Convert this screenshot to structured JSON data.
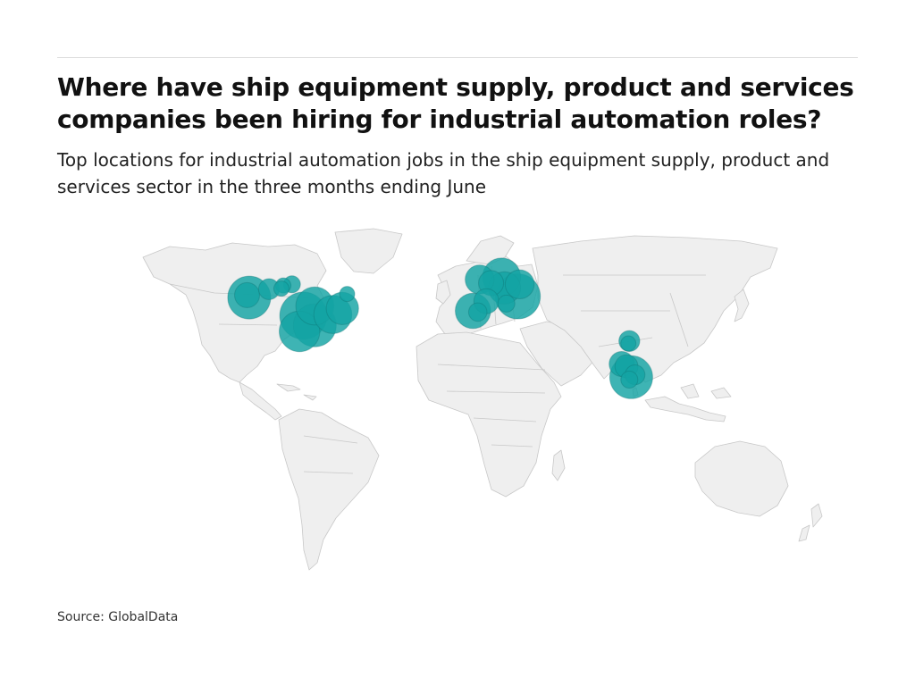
{
  "title": "Where have ship equipment supply, product and services companies been hiring for industrial automation roles?",
  "subtitle": "Top locations for industrial automation jobs in the ship equipment supply, product and services sector in the three months ending June",
  "source": "Source: GlobalData",
  "colors": {
    "bubble": "#14a3a3",
    "land": "#efefef",
    "border": "#c8c8c8"
  },
  "locations": [
    {
      "name": "us-west",
      "lon": -122.4,
      "lat": 46.5,
      "size": 4
    },
    {
      "name": "us-west-2",
      "lon": -123.5,
      "lat": 47.5,
      "size": 1
    },
    {
      "name": "us-northwest",
      "lon": -112.0,
      "lat": 50.0,
      "size": 0.6
    },
    {
      "name": "us-north",
      "lon": -100.0,
      "lat": 52.0,
      "size": 0.3
    },
    {
      "name": "us-north-2",
      "lon": -104.5,
      "lat": 51.5,
      "size": 0.2
    },
    {
      "name": "us-north-3",
      "lon": -105.5,
      "lat": 50.2,
      "size": 0.2
    },
    {
      "name": "us-midwest",
      "lon": -88.0,
      "lat": 43.0,
      "size": 3
    },
    {
      "name": "us-central",
      "lon": -94.0,
      "lat": 39.0,
      "size": 5
    },
    {
      "name": "us-south",
      "lon": -96.0,
      "lat": 32.5,
      "size": 3.5
    },
    {
      "name": "us-southcentral",
      "lon": -88.0,
      "lat": 35.0,
      "size": 4
    },
    {
      "name": "us-east",
      "lon": -78.5,
      "lat": 39.5,
      "size": 3
    },
    {
      "name": "us-northeast",
      "lon": -73.5,
      "lat": 42.0,
      "size": 2
    },
    {
      "name": "us-northeast-2",
      "lon": -71.0,
      "lat": 48.0,
      "size": 0.2
    },
    {
      "name": "uk",
      "lon": -1.5,
      "lat": 54.0,
      "size": 1.5
    },
    {
      "name": "netherlands",
      "lon": 4.5,
      "lat": 52.5,
      "size": 1
    },
    {
      "name": "germany-north",
      "lon": 10.0,
      "lat": 55.0,
      "size": 3
    },
    {
      "name": "germany",
      "lon": 11.5,
      "lat": 50.5,
      "size": 2
    },
    {
      "name": "poland",
      "lon": 19.5,
      "lat": 52.0,
      "size": 1.5
    },
    {
      "name": "central-europe",
      "lon": 18.5,
      "lat": 47.0,
      "size": 4.5
    },
    {
      "name": "france",
      "lon": 2.0,
      "lat": 45.0,
      "size": 1
    },
    {
      "name": "iberia",
      "lon": -5.0,
      "lat": 41.0,
      "size": 2.5
    },
    {
      "name": "iberia-2",
      "lon": -2.5,
      "lat": 40.5,
      "size": 0.4
    },
    {
      "name": "italy",
      "lon": 12.5,
      "lat": 44.0,
      "size": 0.3
    },
    {
      "name": "india-north",
      "lon": 77.0,
      "lat": 28.5,
      "size": 0.6
    },
    {
      "name": "india-north-2",
      "lon": 76.5,
      "lat": 27.5,
      "size": 0.2
    },
    {
      "name": "india-west",
      "lon": 73.0,
      "lat": 19.0,
      "size": 1
    },
    {
      "name": "india-west-2",
      "lon": 75.5,
      "lat": 18.0,
      "size": 0.8
    },
    {
      "name": "india-south",
      "lon": 78.0,
      "lat": 13.5,
      "size": 4
    },
    {
      "name": "india-south-2",
      "lon": 80.0,
      "lat": 14.5,
      "size": 0.5
    },
    {
      "name": "india-south-3",
      "lon": 77.0,
      "lat": 12.5,
      "size": 0.3
    }
  ]
}
